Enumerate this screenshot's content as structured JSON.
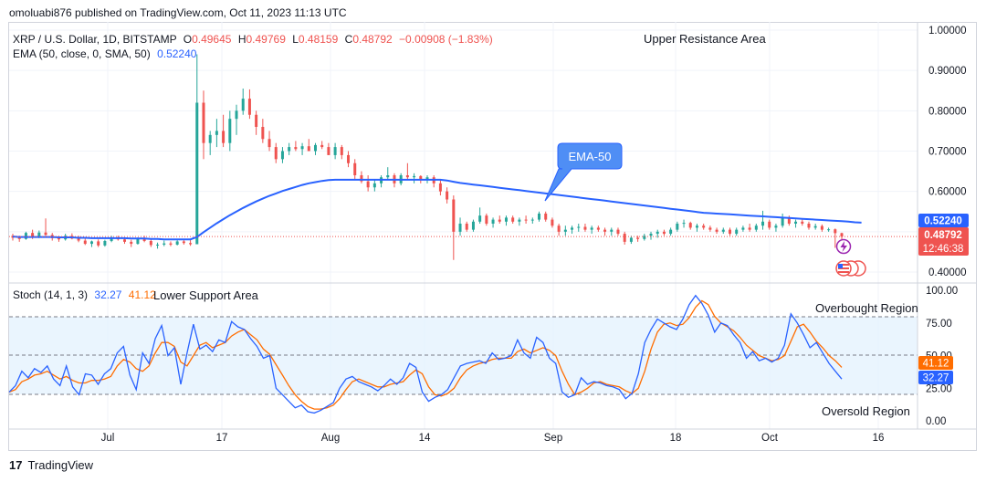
{
  "header": {
    "published": "omoluabi876 published on TradingView.com, Oct 11, 2023 11:13 UTC"
  },
  "legend": {
    "symbol": "XRP / U.S. Dollar, 1D, BITSTAMP",
    "open_label": "O",
    "open": "0.49645",
    "high_label": "H",
    "high": "0.49769",
    "low_label": "L",
    "low": "0.48159",
    "close_label": "C",
    "close": "0.48792",
    "change": "−0.00908 (−1.83%)",
    "ema_label": "EMA (50, close, 0, SMA, 50)",
    "ema_value": "0.52240",
    "stoch_label": "Stoch (14, 1, 3)",
    "stoch_k": "32.27",
    "stoch_d": "41.12"
  },
  "annotations": {
    "upper": "Upper Resistance Area",
    "lower": "Lower Support Area",
    "ema_callout": "EMA-50",
    "overbought": "Overbought Region",
    "oversold": "Oversold Region"
  },
  "price_badges": {
    "ema": "0.52240",
    "close": "0.48792",
    "countdown": "12:46:38"
  },
  "stoch_badges": {
    "d": "41.12",
    "k": "32.27"
  },
  "footer": {
    "brand": "TradingView"
  },
  "colors": {
    "up": "#26a69a",
    "down": "#ef5350",
    "ema": "#2962ff",
    "k": "#2962ff",
    "d": "#ff6d00",
    "band": "#e3f2fd"
  },
  "chart_data": [
    {
      "type": "candlestick",
      "title": "XRP / U.S. Dollar, 1D, BITSTAMP",
      "y_ticks": [
        "1.00000",
        "0.90000",
        "0.80000",
        "0.70000",
        "0.60000",
        "0.40000"
      ],
      "y_tick_values": [
        1.0,
        0.9,
        0.8,
        0.7,
        0.6,
        0.4
      ],
      "x_ticks": [
        "Jul",
        "17",
        "Aug",
        "14",
        "Sep",
        "18",
        "Oct",
        "16"
      ],
      "ylim": [
        0.37,
        1.02
      ],
      "candles": [
        [
          0.49,
          0.495,
          0.478,
          0.485
        ],
        [
          0.485,
          0.49,
          0.475,
          0.482
        ],
        [
          0.482,
          0.5,
          0.48,
          0.497
        ],
        [
          0.497,
          0.505,
          0.482,
          0.487
        ],
        [
          0.487,
          0.503,
          0.484,
          0.498
        ],
        [
          0.498,
          0.533,
          0.49,
          0.492
        ],
        [
          0.492,
          0.497,
          0.478,
          0.484
        ],
        [
          0.484,
          0.49,
          0.475,
          0.481
        ],
        [
          0.481,
          0.495,
          0.478,
          0.49
        ],
        [
          0.49,
          0.496,
          0.481,
          0.483
        ],
        [
          0.483,
          0.49,
          0.474,
          0.478
        ],
        [
          0.478,
          0.484,
          0.467,
          0.47
        ],
        [
          0.47,
          0.478,
          0.462,
          0.476
        ],
        [
          0.476,
          0.481,
          0.462,
          0.466
        ],
        [
          0.466,
          0.48,
          0.463,
          0.477
        ],
        [
          0.477,
          0.49,
          0.474,
          0.485
        ],
        [
          0.485,
          0.49,
          0.478,
          0.481
        ],
        [
          0.481,
          0.485,
          0.47,
          0.475
        ],
        [
          0.475,
          0.48,
          0.462,
          0.47
        ],
        [
          0.47,
          0.486,
          0.468,
          0.482
        ],
        [
          0.482,
          0.49,
          0.474,
          0.477
        ],
        [
          0.477,
          0.481,
          0.462,
          0.467
        ],
        [
          0.467,
          0.473,
          0.458,
          0.468
        ],
        [
          0.468,
          0.478,
          0.464,
          0.471
        ],
        [
          0.471,
          0.476,
          0.464,
          0.468
        ],
        [
          0.468,
          0.479,
          0.466,
          0.476
        ],
        [
          0.476,
          0.48,
          0.468,
          0.472
        ],
        [
          0.472,
          0.48,
          0.465,
          0.469
        ],
        [
          0.469,
          0.94,
          0.469,
          0.82
        ],
        [
          0.82,
          0.85,
          0.68,
          0.72
        ],
        [
          0.72,
          0.75,
          0.69,
          0.74
        ],
        [
          0.74,
          0.78,
          0.71,
          0.75
        ],
        [
          0.75,
          0.79,
          0.71,
          0.72
        ],
        [
          0.72,
          0.8,
          0.7,
          0.78
        ],
        [
          0.78,
          0.815,
          0.74,
          0.8
        ],
        [
          0.8,
          0.855,
          0.79,
          0.83
        ],
        [
          0.83,
          0.853,
          0.78,
          0.79
        ],
        [
          0.79,
          0.8,
          0.74,
          0.76
        ],
        [
          0.76,
          0.78,
          0.72,
          0.73
        ],
        [
          0.73,
          0.75,
          0.7,
          0.71
        ],
        [
          0.71,
          0.72,
          0.67,
          0.68
        ],
        [
          0.68,
          0.71,
          0.67,
          0.7
        ],
        [
          0.7,
          0.72,
          0.69,
          0.71
        ],
        [
          0.71,
          0.725,
          0.7,
          0.705
        ],
        [
          0.705,
          0.72,
          0.69,
          0.712
        ],
        [
          0.712,
          0.73,
          0.7,
          0.7
        ],
        [
          0.7,
          0.72,
          0.69,
          0.715
        ],
        [
          0.715,
          0.725,
          0.705,
          0.71
        ],
        [
          0.71,
          0.72,
          0.69,
          0.69
        ],
        [
          0.69,
          0.72,
          0.68,
          0.71
        ],
        [
          0.71,
          0.715,
          0.68,
          0.69
        ],
        [
          0.69,
          0.7,
          0.66,
          0.67
        ],
        [
          0.67,
          0.68,
          0.63,
          0.64
        ],
        [
          0.64,
          0.65,
          0.62,
          0.625
        ],
        [
          0.625,
          0.64,
          0.6,
          0.61
        ],
        [
          0.61,
          0.63,
          0.6,
          0.62
        ],
        [
          0.62,
          0.64,
          0.61,
          0.635
        ],
        [
          0.635,
          0.66,
          0.63,
          0.64
        ],
        [
          0.64,
          0.645,
          0.61,
          0.62
        ],
        [
          0.62,
          0.645,
          0.615,
          0.64
        ],
        [
          0.64,
          0.67,
          0.63,
          0.635
        ],
        [
          0.635,
          0.645,
          0.62,
          0.638
        ],
        [
          0.638,
          0.64,
          0.62,
          0.63
        ],
        [
          0.63,
          0.64,
          0.62,
          0.635
        ],
        [
          0.635,
          0.64,
          0.61,
          0.62
        ],
        [
          0.62,
          0.63,
          0.59,
          0.6
        ],
        [
          0.6,
          0.61,
          0.57,
          0.58
        ],
        [
          0.58,
          0.59,
          0.43,
          0.5
        ],
        [
          0.5,
          0.535,
          0.49,
          0.52
        ],
        [
          0.52,
          0.525,
          0.5,
          0.505
        ],
        [
          0.505,
          0.53,
          0.5,
          0.525
        ],
        [
          0.525,
          0.56,
          0.52,
          0.54
        ],
        [
          0.54,
          0.545,
          0.515,
          0.52
        ],
        [
          0.52,
          0.535,
          0.51,
          0.53
        ],
        [
          0.53,
          0.54,
          0.52,
          0.525
        ],
        [
          0.525,
          0.54,
          0.515,
          0.535
        ],
        [
          0.535,
          0.54,
          0.52,
          0.525
        ],
        [
          0.525,
          0.535,
          0.515,
          0.53
        ],
        [
          0.53,
          0.54,
          0.52,
          0.528
        ],
        [
          0.528,
          0.535,
          0.52,
          0.53
        ],
        [
          0.53,
          0.55,
          0.525,
          0.545
        ],
        [
          0.545,
          0.55,
          0.525,
          0.53
        ],
        [
          0.53,
          0.535,
          0.51,
          0.515
        ],
        [
          0.515,
          0.52,
          0.49,
          0.5
        ],
        [
          0.5,
          0.515,
          0.49,
          0.505
        ],
        [
          0.505,
          0.515,
          0.495,
          0.51
        ],
        [
          0.51,
          0.52,
          0.5,
          0.512
        ],
        [
          0.512,
          0.52,
          0.5,
          0.505
        ],
        [
          0.505,
          0.515,
          0.495,
          0.51
        ],
        [
          0.51,
          0.515,
          0.5,
          0.505
        ],
        [
          0.505,
          0.51,
          0.49,
          0.5
        ],
        [
          0.5,
          0.51,
          0.49,
          0.505
        ],
        [
          0.505,
          0.51,
          0.49,
          0.495
        ],
        [
          0.495,
          0.5,
          0.468,
          0.475
        ],
        [
          0.475,
          0.49,
          0.47,
          0.485
        ],
        [
          0.485,
          0.49,
          0.475,
          0.482
        ],
        [
          0.482,
          0.495,
          0.478,
          0.49
        ],
        [
          0.49,
          0.5,
          0.48,
          0.495
        ],
        [
          0.495,
          0.505,
          0.485,
          0.5
        ],
        [
          0.5,
          0.505,
          0.49,
          0.495
        ],
        [
          0.495,
          0.51,
          0.49,
          0.505
        ],
        [
          0.505,
          0.525,
          0.5,
          0.52
        ],
        [
          0.52,
          0.53,
          0.51,
          0.522
        ],
        [
          0.522,
          0.525,
          0.505,
          0.51
        ],
        [
          0.51,
          0.52,
          0.5,
          0.515
        ],
        [
          0.515,
          0.52,
          0.505,
          0.51
        ],
        [
          0.51,
          0.515,
          0.5,
          0.505
        ],
        [
          0.505,
          0.51,
          0.495,
          0.5
        ],
        [
          0.5,
          0.51,
          0.495,
          0.505
        ],
        [
          0.505,
          0.51,
          0.49,
          0.495
        ],
        [
          0.495,
          0.51,
          0.49,
          0.505
        ],
        [
          0.505,
          0.515,
          0.5,
          0.51
        ],
        [
          0.51,
          0.52,
          0.5,
          0.505
        ],
        [
          0.505,
          0.52,
          0.5,
          0.515
        ],
        [
          0.515,
          0.552,
          0.505,
          0.525
        ],
        [
          0.525,
          0.53,
          0.505,
          0.51
        ],
        [
          0.51,
          0.52,
          0.5,
          0.515
        ],
        [
          0.515,
          0.545,
          0.51,
          0.535
        ],
        [
          0.535,
          0.54,
          0.515,
          0.52
        ],
        [
          0.52,
          0.53,
          0.51,
          0.525
        ],
        [
          0.525,
          0.53,
          0.515,
          0.52
        ],
        [
          0.52,
          0.525,
          0.505,
          0.51
        ],
        [
          0.51,
          0.52,
          0.505,
          0.514
        ],
        [
          0.514,
          0.518,
          0.5,
          0.505
        ],
        [
          0.505,
          0.51,
          0.5,
          0.506
        ],
        [
          0.506,
          0.508,
          0.46,
          0.4965
        ],
        [
          0.4965,
          0.4977,
          0.4816,
          0.4879
        ]
      ],
      "ema50": [
        0.488,
        0.487,
        0.487,
        0.487,
        0.487,
        0.487,
        0.487,
        0.486,
        0.486,
        0.486,
        0.485,
        0.485,
        0.484,
        0.484,
        0.484,
        0.484,
        0.484,
        0.484,
        0.483,
        0.483,
        0.483,
        0.482,
        0.482,
        0.481,
        0.481,
        0.481,
        0.481,
        0.481,
        0.487,
        0.499,
        0.51,
        0.521,
        0.531,
        0.541,
        0.55,
        0.559,
        0.567,
        0.575,
        0.582,
        0.589,
        0.595,
        0.601,
        0.606,
        0.611,
        0.616,
        0.62,
        0.623,
        0.626,
        0.628,
        0.629,
        0.629,
        0.629,
        0.629,
        0.629,
        0.629,
        0.629,
        0.629,
        0.629,
        0.629,
        0.629,
        0.629,
        0.629,
        0.629,
        0.629,
        0.629,
        0.629,
        0.627,
        0.624,
        0.621,
        0.619,
        0.617,
        0.615,
        0.613,
        0.611,
        0.609,
        0.607,
        0.605,
        0.603,
        0.601,
        0.599,
        0.597,
        0.595,
        0.593,
        0.591,
        0.589,
        0.587,
        0.585,
        0.583,
        0.581,
        0.579,
        0.577,
        0.575,
        0.573,
        0.571,
        0.569,
        0.567,
        0.565,
        0.563,
        0.561,
        0.559,
        0.557,
        0.555,
        0.553,
        0.551,
        0.549,
        0.547,
        0.546,
        0.545,
        0.544,
        0.543,
        0.542,
        0.541,
        0.54,
        0.539,
        0.538,
        0.537,
        0.536,
        0.535,
        0.534,
        0.533,
        0.532,
        0.531,
        0.53,
        0.529,
        0.528,
        0.527,
        0.526,
        0.525,
        0.5235,
        0.5224
      ],
      "ema_value": 0.5224,
      "close_value": 0.48792
    },
    {
      "type": "line",
      "title": "Stoch (14, 1, 3)",
      "y_ticks": [
        "100.00",
        "75.00",
        "50.00",
        "25.00",
        "0.00"
      ],
      "y_tick_values": [
        100,
        75,
        50,
        25,
        0
      ],
      "ylim": [
        0,
        100
      ],
      "levels": [
        80,
        50,
        20
      ],
      "series": [
        {
          "name": "%K",
          "values": [
            22,
            27,
            38,
            33,
            40,
            37,
            42,
            32,
            27,
            42,
            26,
            20,
            36,
            35,
            28,
            36,
            40,
            52,
            57,
            35,
            24,
            52,
            44,
            63,
            73,
            50,
            56,
            28,
            52,
            74,
            55,
            58,
            53,
            62,
            60,
            76,
            72,
            70,
            63,
            57,
            48,
            50,
            25,
            20,
            15,
            10,
            12,
            7,
            6,
            8,
            11,
            14,
            25,
            32,
            34,
            30,
            28,
            26,
            23,
            27,
            32,
            28,
            33,
            44,
            41,
            22,
            15,
            18,
            20,
            24,
            33,
            42,
            44,
            45,
            46,
            44,
            52,
            47,
            48,
            50,
            62,
            52,
            48,
            64,
            60,
            48,
            44,
            22,
            18,
            20,
            33,
            28,
            30,
            29,
            27,
            26,
            24,
            17,
            21,
            36,
            60,
            70,
            78,
            75,
            72,
            70,
            78,
            89,
            96,
            90,
            81,
            68,
            75,
            73,
            66,
            60,
            48,
            53,
            46,
            48,
            45,
            48,
            58,
            82,
            75,
            66,
            56,
            60,
            52,
            44,
            38,
            32
          ]
        },
        {
          "name": "%D",
          "values": [
            22,
            24,
            30,
            32,
            35,
            36,
            38,
            35,
            32,
            34,
            31,
            29,
            29,
            31,
            31,
            32,
            34,
            42,
            47,
            45,
            40,
            38,
            42,
            52,
            60,
            60,
            57,
            45,
            42,
            50,
            58,
            60,
            56,
            58,
            60,
            65,
            68,
            70,
            66,
            62,
            55,
            51,
            43,
            35,
            27,
            20,
            15,
            11,
            9,
            9,
            10,
            12,
            17,
            24,
            30,
            32,
            30,
            28,
            26,
            26,
            28,
            29,
            30,
            35,
            39,
            36,
            26,
            20,
            19,
            21,
            25,
            33,
            39,
            42,
            44,
            45,
            47,
            48,
            48,
            48,
            53,
            55,
            52,
            54,
            56,
            54,
            50,
            38,
            28,
            20,
            22,
            25,
            29,
            30,
            28,
            27,
            26,
            23,
            21,
            25,
            38,
            55,
            68,
            74,
            75,
            73,
            74,
            79,
            87,
            92,
            89,
            80,
            75,
            72,
            69,
            64,
            58,
            54,
            50,
            48,
            46,
            47,
            50,
            61,
            72,
            74,
            68,
            61,
            56,
            50,
            46,
            41
          ]
        }
      ],
      "k_value": 32.27,
      "d_value": 41.12
    }
  ]
}
